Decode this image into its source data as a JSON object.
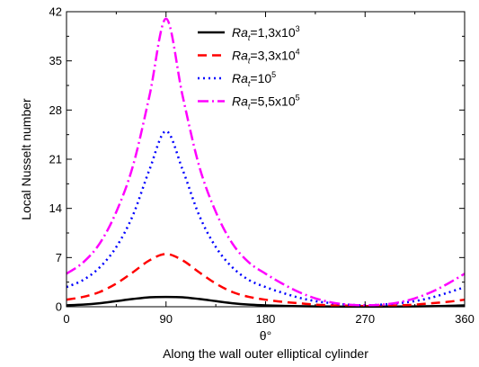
{
  "chart_data": {
    "type": "line",
    "xlabel": "θ°",
    "xlabel_secondary": "Along the wall outer elliptical cylinder",
    "ylabel": "Local Nusselt number",
    "xlim": [
      0,
      360
    ],
    "ylim": [
      0,
      42
    ],
    "xticks": [
      "0",
      "90",
      "180",
      "270",
      "360"
    ],
    "yticks": [
      "0",
      "7",
      "14",
      "21",
      "28",
      "35",
      "42"
    ],
    "grid": false,
    "legend_position": "top-right",
    "x": [
      0,
      15,
      30,
      45,
      60,
      75,
      90,
      105,
      120,
      135,
      150,
      165,
      180,
      195,
      210,
      225,
      240,
      255,
      270,
      285,
      300,
      315,
      330,
      345,
      360
    ],
    "series": [
      {
        "name_prefix": "Ra",
        "name_sub": "t",
        "name_value": "=1,3x10",
        "name_sup": "3",
        "color": "#000000",
        "dash": "solid",
        "values": [
          0.2,
          0.3,
          0.5,
          0.8,
          1.1,
          1.35,
          1.4,
          1.35,
          1.1,
          0.8,
          0.5,
          0.3,
          0.2,
          0.12,
          0.08,
          0.05,
          0.03,
          0.02,
          0.02,
          0.02,
          0.03,
          0.05,
          0.08,
          0.12,
          0.2
        ]
      },
      {
        "name_prefix": "Ra",
        "name_sub": "t",
        "name_value": "=3,3x10",
        "name_sup": "4",
        "color": "#ff0000",
        "dash": "dash",
        "values": [
          1.0,
          1.4,
          2.1,
          3.3,
          4.9,
          6.6,
          7.5,
          6.6,
          4.9,
          3.3,
          2.1,
          1.4,
          1.0,
          0.7,
          0.5,
          0.3,
          0.2,
          0.15,
          0.1,
          0.15,
          0.2,
          0.3,
          0.5,
          0.7,
          1.0
        ]
      },
      {
        "name_prefix": "Ra",
        "name_sub": "t",
        "name_value": "=10",
        "name_sup": "5",
        "color": "#0000ff",
        "dash": "dot",
        "values": [
          2.8,
          3.8,
          5.6,
          8.5,
          13.0,
          19.5,
          25.0,
          19.5,
          13.0,
          8.5,
          5.6,
          3.8,
          2.8,
          2.0,
          1.3,
          0.8,
          0.5,
          0.3,
          0.2,
          0.3,
          0.5,
          0.8,
          1.3,
          2.0,
          2.8
        ]
      },
      {
        "name_prefix": "Ra",
        "name_sub": "t",
        "name_value": "=5,5x10",
        "name_sup": "5",
        "color": "#ff00ff",
        "dash": "dashdot",
        "values": [
          4.7,
          6.3,
          9.0,
          13.5,
          20.0,
          30.0,
          41.0,
          30.0,
          20.0,
          13.5,
          9.0,
          6.3,
          4.7,
          3.3,
          2.1,
          1.2,
          0.6,
          0.3,
          0.2,
          0.3,
          0.6,
          1.2,
          2.1,
          3.3,
          4.7
        ]
      }
    ]
  }
}
